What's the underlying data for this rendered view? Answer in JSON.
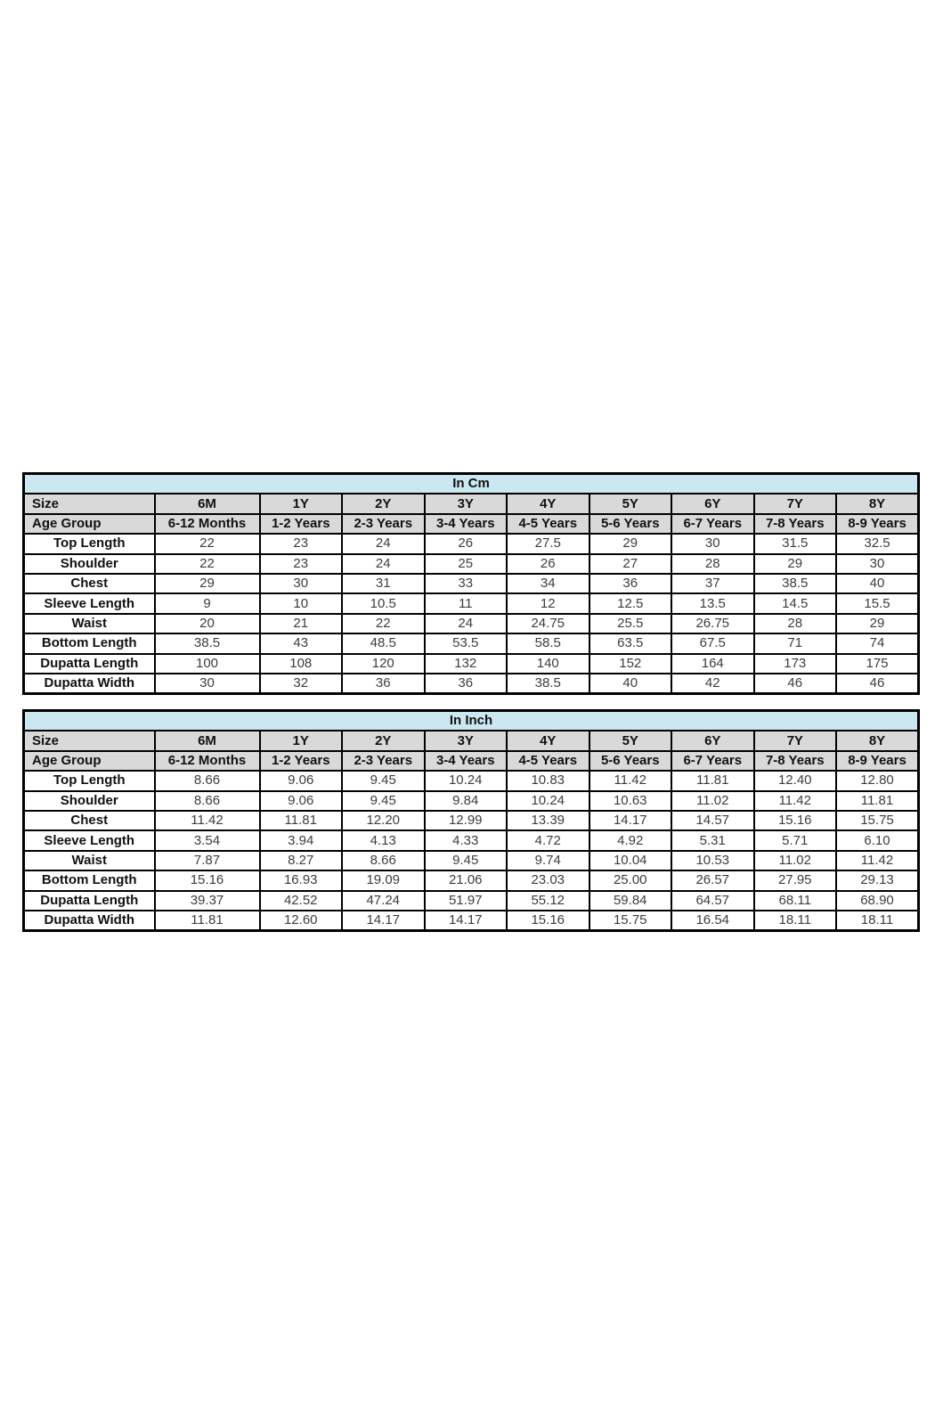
{
  "colors": {
    "title_background": "#cbe7f2",
    "header_background": "#d9d9d9",
    "border": "#000000",
    "value_text": "#3d3d3d",
    "label_text": "#111111"
  },
  "tables": [
    {
      "title": "In Cm",
      "size_label": "Size",
      "age_label": "Age Group",
      "sizes": [
        "6M",
        "1Y",
        "2Y",
        "3Y",
        "4Y",
        "5Y",
        "6Y",
        "7Y",
        "8Y"
      ],
      "age_groups": [
        "6-12 Months",
        "1-2 Years",
        "2-3 Years",
        "3-4 Years",
        "4-5 Years",
        "5-6 Years",
        "6-7 Years",
        "7-8 Years",
        "8-9 Years"
      ],
      "rows": [
        {
          "label": "Top Length",
          "values": [
            "22",
            "23",
            "24",
            "26",
            "27.5",
            "29",
            "30",
            "31.5",
            "32.5"
          ]
        },
        {
          "label": "Shoulder",
          "values": [
            "22",
            "23",
            "24",
            "25",
            "26",
            "27",
            "28",
            "29",
            "30"
          ]
        },
        {
          "label": "Chest",
          "values": [
            "29",
            "30",
            "31",
            "33",
            "34",
            "36",
            "37",
            "38.5",
            "40"
          ]
        },
        {
          "label": "Sleeve Length",
          "values": [
            "9",
            "10",
            "10.5",
            "11",
            "12",
            "12.5",
            "13.5",
            "14.5",
            "15.5"
          ]
        },
        {
          "label": "Waist",
          "values": [
            "20",
            "21",
            "22",
            "24",
            "24.75",
            "25.5",
            "26.75",
            "28",
            "29"
          ]
        },
        {
          "label": "Bottom Length",
          "values": [
            "38.5",
            "43",
            "48.5",
            "53.5",
            "58.5",
            "63.5",
            "67.5",
            "71",
            "74"
          ]
        },
        {
          "label": "Dupatta Length",
          "values": [
            "100",
            "108",
            "120",
            "132",
            "140",
            "152",
            "164",
            "173",
            "175"
          ]
        },
        {
          "label": "Dupatta Width",
          "values": [
            "30",
            "32",
            "36",
            "36",
            "38.5",
            "40",
            "42",
            "46",
            "46"
          ]
        }
      ]
    },
    {
      "title": "In Inch",
      "size_label": "Size",
      "age_label": "Age Group",
      "sizes": [
        "6M",
        "1Y",
        "2Y",
        "3Y",
        "4Y",
        "5Y",
        "6Y",
        "7Y",
        "8Y"
      ],
      "age_groups": [
        "6-12 Months",
        "1-2 Years",
        "2-3 Years",
        "3-4 Years",
        "4-5 Years",
        "5-6 Years",
        "6-7 Years",
        "7-8 Years",
        "8-9 Years"
      ],
      "rows": [
        {
          "label": "Top Length",
          "values": [
            "8.66",
            "9.06",
            "9.45",
            "10.24",
            "10.83",
            "11.42",
            "11.81",
            "12.40",
            "12.80"
          ]
        },
        {
          "label": "Shoulder",
          "values": [
            "8.66",
            "9.06",
            "9.45",
            "9.84",
            "10.24",
            "10.63",
            "11.02",
            "11.42",
            "11.81"
          ]
        },
        {
          "label": "Chest",
          "values": [
            "11.42",
            "11.81",
            "12.20",
            "12.99",
            "13.39",
            "14.17",
            "14.57",
            "15.16",
            "15.75"
          ]
        },
        {
          "label": "Sleeve Length",
          "values": [
            "3.54",
            "3.94",
            "4.13",
            "4.33",
            "4.72",
            "4.92",
            "5.31",
            "5.71",
            "6.10"
          ]
        },
        {
          "label": "Waist",
          "values": [
            "7.87",
            "8.27",
            "8.66",
            "9.45",
            "9.74",
            "10.04",
            "10.53",
            "11.02",
            "11.42"
          ]
        },
        {
          "label": "Bottom Length",
          "values": [
            "15.16",
            "16.93",
            "19.09",
            "21.06",
            "23.03",
            "25.00",
            "26.57",
            "27.95",
            "29.13"
          ]
        },
        {
          "label": "Dupatta Length",
          "values": [
            "39.37",
            "42.52",
            "47.24",
            "51.97",
            "55.12",
            "59.84",
            "64.57",
            "68.11",
            "68.90"
          ]
        },
        {
          "label": "Dupatta Width",
          "values": [
            "11.81",
            "12.60",
            "14.17",
            "14.17",
            "15.16",
            "15.75",
            "16.54",
            "18.11",
            "18.11"
          ]
        }
      ]
    }
  ]
}
